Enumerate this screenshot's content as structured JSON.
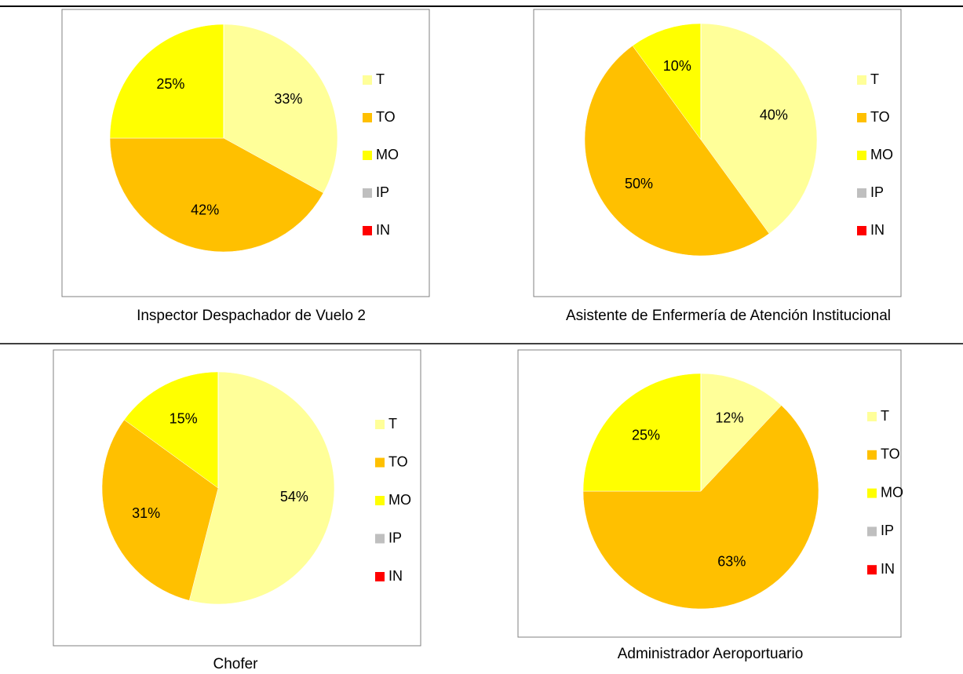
{
  "chart_data": [
    {
      "type": "pie",
      "title": "Inspector Despachador de Vuelo 2",
      "categories": [
        "T",
        "TO",
        "MO",
        "IP",
        "IN"
      ],
      "values": [
        33,
        42,
        25,
        0,
        0
      ],
      "value_labels": [
        "33%",
        "42%",
        "25%",
        null,
        null
      ],
      "colors": [
        "#FFFF99",
        "#FFC000",
        "#FFFF00",
        "#BFBFBF",
        "#FF0000"
      ],
      "legend": "right"
    },
    {
      "type": "pie",
      "title": "Asistente de Enfermería de Atención Institucional",
      "categories": [
        "T",
        "TO",
        "MO",
        "IP",
        "IN"
      ],
      "values": [
        40,
        50,
        10,
        0,
        0
      ],
      "value_labels": [
        "40%",
        "50%",
        "10%",
        null,
        null
      ],
      "colors": [
        "#FFFF99",
        "#FFC000",
        "#FFFF00",
        "#BFBFBF",
        "#FF0000"
      ],
      "legend": "right"
    },
    {
      "type": "pie",
      "title": "Chofer",
      "categories": [
        "T",
        "TO",
        "MO",
        "IP",
        "IN"
      ],
      "values": [
        54,
        31,
        15,
        0,
        0
      ],
      "value_labels": [
        "54%",
        "31%",
        "15%",
        null,
        null
      ],
      "colors": [
        "#FFFF99",
        "#FFC000",
        "#FFFF00",
        "#BFBFBF",
        "#FF0000"
      ],
      "legend": "right"
    },
    {
      "type": "pie",
      "title": "Administrador Aeroportuario",
      "categories": [
        "T",
        "TO",
        "MO",
        "IP",
        "IN"
      ],
      "values": [
        12,
        63,
        25,
        0,
        0
      ],
      "value_labels": [
        "12%",
        "63%",
        "25%",
        null,
        null
      ],
      "colors": [
        "#FFFF99",
        "#FFC000",
        "#FFFF00",
        "#BFBFBF",
        "#FF0000"
      ],
      "legend": "right"
    }
  ]
}
